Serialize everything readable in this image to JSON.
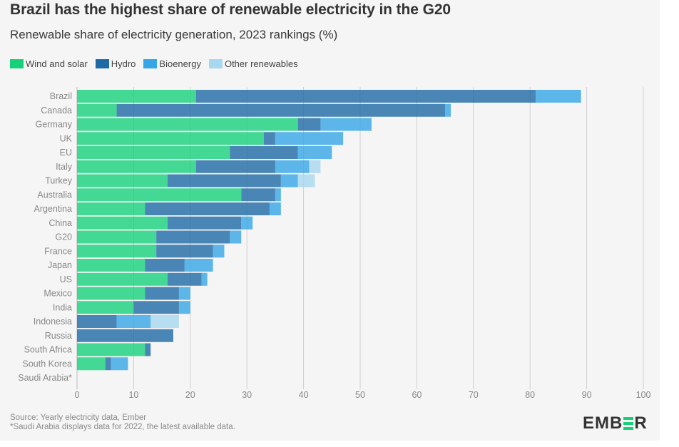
{
  "title": "Brazil has the highest share of renewable electricity in the G20",
  "subtitle": "Renewable share of electricity generation, 2023 rankings (%)",
  "legend": [
    {
      "label": "Wind and solar",
      "color": "#16d17a"
    },
    {
      "label": "Hydro",
      "color": "#1f6aa5"
    },
    {
      "label": "Bioenergy",
      "color": "#36a6e6"
    },
    {
      "label": "Other renewables",
      "color": "#a8d7f0"
    }
  ],
  "source_lines": [
    "Source: Yearly electricity data, Ember",
    "*Saudi Arabia displays data for 2022, the latest available data."
  ],
  "logo": {
    "text_left": "EMB",
    "text_right": "R",
    "accent_color": "#16d17a"
  },
  "chart_data": {
    "type": "bar",
    "orientation": "horizontal",
    "stacked": true,
    "title": "Brazil has the highest share of renewable electricity in the G20",
    "subtitle": "Renewable share of electricity generation, 2023 rankings (%)",
    "xlabel": "",
    "ylabel": "",
    "xlim": [
      0,
      100
    ],
    "xticks": [
      0,
      10,
      20,
      30,
      40,
      50,
      60,
      70,
      80,
      90,
      100
    ],
    "grid": true,
    "legend_position": "top-left",
    "categories": [
      "Brazil",
      "Canada",
      "Germany",
      "UK",
      "EU",
      "Italy",
      "Turkey",
      "Australia",
      "Argentina",
      "China",
      "G20",
      "France",
      "Japan",
      "US",
      "Mexico",
      "India",
      "Indonesia",
      "Russia",
      "South Africa",
      "South Korea",
      "Saudi Arabia*"
    ],
    "series": [
      {
        "name": "Wind and solar",
        "color": "#16d17a",
        "values": [
          21,
          7,
          39,
          33,
          27,
          21,
          16,
          29,
          12,
          16,
          14,
          14,
          12,
          16,
          12,
          10,
          0,
          0,
          12,
          5,
          0
        ]
      },
      {
        "name": "Hydro",
        "color": "#1f6aa5",
        "values": [
          60,
          58,
          4,
          2,
          12,
          14,
          20,
          6,
          22,
          13,
          13,
          10,
          7,
          6,
          6,
          8,
          7,
          17,
          1,
          1,
          0
        ]
      },
      {
        "name": "Bioenergy",
        "color": "#36a6e6",
        "values": [
          8,
          1,
          9,
          12,
          6,
          6,
          3,
          1,
          2,
          2,
          2,
          2,
          5,
          1,
          2,
          2,
          6,
          0,
          0,
          3,
          0
        ]
      },
      {
        "name": "Other renewables",
        "color": "#a8d7f0",
        "values": [
          0,
          0,
          0,
          0,
          0,
          2,
          3,
          0,
          0,
          0,
          0,
          0,
          0,
          0,
          0,
          0,
          5,
          0,
          0,
          0,
          0
        ]
      }
    ]
  }
}
